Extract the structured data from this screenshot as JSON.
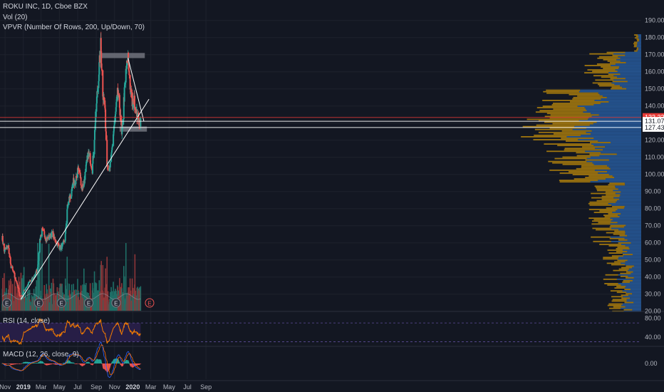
{
  "legend": {
    "symbol": "ROKU INC, 1D, Cboe BZX",
    "volume": "Vol (20)",
    "vpvr": "VPVR (Number Of Rows, 200, Up/Down, 70)",
    "rsi": "RSI (14, close)",
    "macd": "MACD (12, 26, close, 9)"
  },
  "colors": {
    "background": "#131722",
    "up": "#26a69a",
    "down": "#ef5350",
    "volume_up": "#1f6e66",
    "volume_down": "#8e3638",
    "rsi_line": "#f57c00",
    "rsi_band": "#2a1f4a",
    "vpvr_up": "#2962a8",
    "vpvr_down": "#b8860b",
    "trendline": "#ffffff",
    "zone": "#6b6e78",
    "red_level": "#e53935"
  },
  "chart_data": [
    {
      "type": "candlestick",
      "title": "ROKU INC, 1D, Cboe BZX",
      "x_tick_labels": [
        "Nov",
        "2019",
        "Mar",
        "May",
        "Jul",
        "Sep",
        "Nov",
        "2020",
        "Mar",
        "May",
        "Jul",
        "Sep"
      ],
      "y_tick_labels": [
        "190.00",
        "180.00",
        "170.00",
        "160.00",
        "150.00",
        "140.00",
        "130.00",
        "120.00",
        "110.00",
        "100.00",
        "90.00",
        "80.00",
        "70.00",
        "60.00",
        "50.00",
        "40.00",
        "30.00",
        "20.00"
      ],
      "ylim": [
        20,
        190
      ],
      "price_path": [
        [
          "2018-10-22",
          64
        ],
        [
          "2018-10-29",
          55
        ],
        [
          "2018-11-05",
          57
        ],
        [
          "2018-11-12",
          58
        ],
        [
          "2018-11-19",
          47
        ],
        [
          "2018-11-26",
          44
        ],
        [
          "2018-12-03",
          40
        ],
        [
          "2018-12-10",
          37
        ],
        [
          "2018-12-17",
          31
        ],
        [
          "2018-12-24",
          27
        ],
        [
          "2018-12-31",
          31
        ],
        [
          "2019-01-07",
          33
        ],
        [
          "2019-01-14",
          35
        ],
        [
          "2019-01-21",
          37
        ],
        [
          "2019-01-28",
          38
        ],
        [
          "2019-02-04",
          40
        ],
        [
          "2019-02-11",
          42
        ],
        [
          "2019-02-18",
          46
        ],
        [
          "2019-02-25",
          62
        ],
        [
          "2019-03-04",
          67
        ],
        [
          "2019-03-11",
          66
        ],
        [
          "2019-03-18",
          62
        ],
        [
          "2019-03-25",
          63
        ],
        [
          "2019-04-01",
          64
        ],
        [
          "2019-04-08",
          66
        ],
        [
          "2019-04-15",
          62
        ],
        [
          "2019-04-22",
          60
        ],
        [
          "2019-04-29",
          58
        ],
        [
          "2019-05-06",
          57
        ],
        [
          "2019-05-13",
          59
        ],
        [
          "2019-05-20",
          62
        ],
        [
          "2019-05-27",
          80
        ],
        [
          "2019-06-03",
          86
        ],
        [
          "2019-06-10",
          88
        ],
        [
          "2019-06-17",
          96
        ],
        [
          "2019-06-24",
          94
        ],
        [
          "2019-07-01",
          104
        ],
        [
          "2019-07-08",
          101
        ],
        [
          "2019-07-15",
          92
        ],
        [
          "2019-07-22",
          95
        ],
        [
          "2019-07-29",
          104
        ],
        [
          "2019-08-05",
          112
        ],
        [
          "2019-08-12",
          109
        ],
        [
          "2019-08-19",
          103
        ],
        [
          "2019-08-26",
          122
        ],
        [
          "2019-09-02",
          142
        ],
        [
          "2019-09-09",
          158
        ],
        [
          "2019-09-16",
          176
        ],
        [
          "2019-09-23",
          148
        ],
        [
          "2019-09-30",
          139
        ],
        [
          "2019-10-07",
          108
        ],
        [
          "2019-10-14",
          101
        ],
        [
          "2019-10-21",
          109
        ],
        [
          "2019-10-28",
          124
        ],
        [
          "2019-11-04",
          134
        ],
        [
          "2019-11-11",
          147
        ],
        [
          "2019-11-18",
          140
        ],
        [
          "2019-11-25",
          122
        ],
        [
          "2019-12-02",
          143
        ],
        [
          "2019-12-09",
          160
        ],
        [
          "2019-12-16",
          168
        ],
        [
          "2019-12-23",
          152
        ],
        [
          "2019-12-30",
          141
        ],
        [
          "2020-01-06",
          143
        ],
        [
          "2020-01-13",
          136
        ],
        [
          "2020-01-20",
          131
        ],
        [
          "2020-01-27",
          131
        ]
      ],
      "levels": [
        {
          "label": "133.32",
          "value": 133.32,
          "color": "#e53935"
        },
        {
          "label": "131.07",
          "value": 131.07,
          "color": "#ffffff"
        },
        {
          "label": "127.43",
          "value": 127.43,
          "color": "#ffffff"
        }
      ],
      "zones": [
        {
          "from": "2019-09-16",
          "to": "2020-02-10",
          "low": 168,
          "high": 171
        },
        {
          "from": "2019-11-18",
          "to": "2020-02-17",
          "low": 125,
          "high": 128
        }
      ],
      "trendlines": [
        {
          "from": [
            "2018-12-24",
            27
          ],
          "to": [
            "2020-02-24",
            144
          ]
        },
        {
          "from": [
            "2019-12-16",
            168
          ],
          "to": [
            "2020-02-07",
            131
          ]
        }
      ],
      "earnings_markers": [
        "2018-11-07",
        "2019-02-21",
        "2019-05-08",
        "2019-08-07",
        "2019-11-06",
        "2020-02-26"
      ],
      "earnings_label": "E",
      "volume_series": "Vol (20)",
      "vpvr_series": "VPVR (Number Of Rows, 200, Up/Down, 70)"
    },
    {
      "type": "line",
      "title": "RSI (14, close)",
      "y_tick_labels": [
        "80.00",
        "40.00"
      ],
      "ylim": [
        20,
        90
      ],
      "band": [
        30,
        70
      ],
      "values_start": 38,
      "values_end": 42
    },
    {
      "type": "line",
      "title": "MACD (12, 26, close, 9)",
      "y_tick_labels": [
        "0.00"
      ],
      "ylim": [
        -12,
        12
      ]
    }
  ]
}
